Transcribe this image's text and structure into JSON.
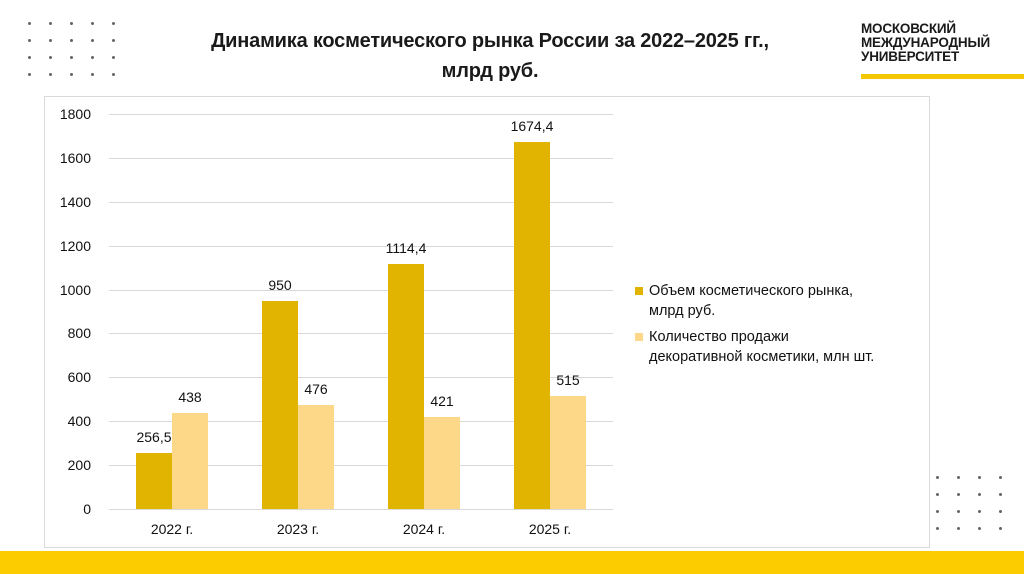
{
  "slide": {
    "title_line1": "Динамика косметического рынка России за 2022–2025 гг.,",
    "title_line2": "млрд руб.",
    "logo": {
      "line1": "МОСКОВСКИЙ",
      "line2": "МЕЖДУНАРОДНЫЙ",
      "line3": "УНИВЕРСИТЕТ",
      "accent_color": "#f4c800"
    },
    "footer_color": "#fdcc00"
  },
  "chart_data": {
    "type": "bar",
    "title": "Динамика косметического рынка России за 2022–2025 гг., млрд руб.",
    "xlabel": "",
    "ylabel": "",
    "ylim": [
      0,
      1800
    ],
    "yticks": [
      "0",
      "200",
      "400",
      "600",
      "800",
      "1000",
      "1200",
      "1400",
      "1600",
      "1800"
    ],
    "grid": true,
    "legend_position": "right",
    "categories": [
      "2022 г.",
      "2023 г.",
      "2024 г.",
      "2025 г."
    ],
    "series": [
      {
        "name": "Объем косметического рынка, млрд руб.",
        "legend_line1": "Объем косметического рынка,",
        "legend_line2": "млрд руб.",
        "color": "#e0b400",
        "values": [
          256.5,
          950,
          1114.4,
          1674.4
        ],
        "labels": [
          "256,5",
          "950",
          "1114,4",
          "1674,4"
        ]
      },
      {
        "name": "Количество продажи декоративной косметики, млн шт.",
        "legend_line1": "Количество продажи",
        "legend_line2": "декоративной косметики, млн шт.",
        "color": "#fdd888",
        "values": [
          438,
          476,
          421,
          515
        ],
        "labels": [
          "438",
          "476",
          "421",
          "515"
        ]
      }
    ]
  }
}
